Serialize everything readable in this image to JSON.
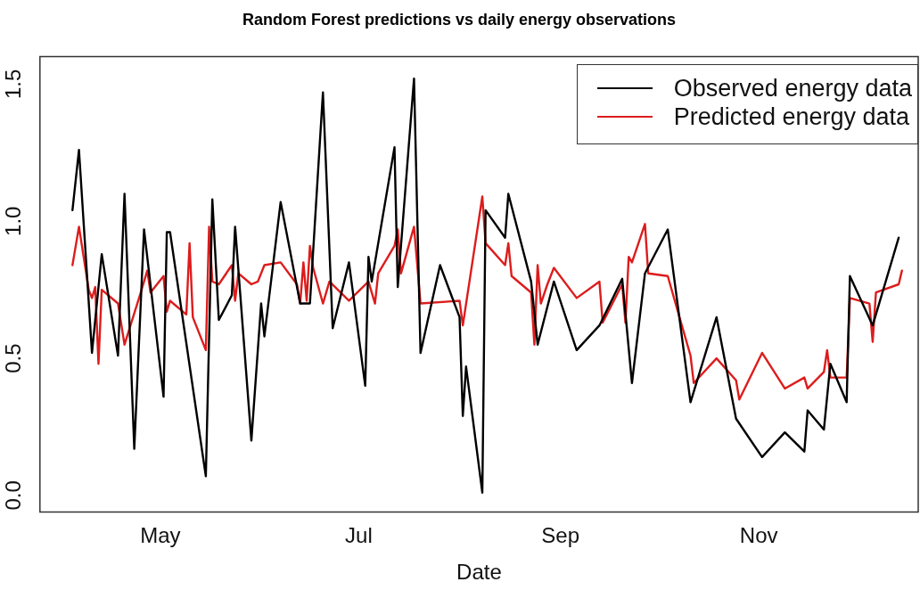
{
  "chart_data": {
    "type": "line",
    "title": "Random Forest predictions vs daily energy observations",
    "xlabel": "Date",
    "xlim": [
      "--03-25",
      "--12-20"
    ],
    "xticks": [
      {
        "value": "--05-01",
        "label": "May"
      },
      {
        "value": "--07-01",
        "label": "Jul"
      },
      {
        "value": "--09-01",
        "label": "Sep"
      },
      {
        "value": "--11-01",
        "label": "Nov"
      }
    ],
    "ylim": [
      -0.06,
      1.6
    ],
    "yticks": [
      {
        "value": 0,
        "label": "0.0"
      },
      {
        "value": 0.5,
        "label": "0.5"
      },
      {
        "value": 1,
        "label": "1.0"
      },
      {
        "value": 1.5,
        "label": "1.5"
      }
    ],
    "grid": false,
    "legend": "top right",
    "marker": "none",
    "line_style": "solid",
    "series": [
      {
        "name": "Observed energy data",
        "color": "#000000",
        "x": [
          "--04-04",
          "--04-06",
          "--04-10",
          "--04-13",
          "--04-18",
          "--04-20",
          "--04-23",
          "--04-26",
          "--05-02",
          "--05-03",
          "--05-04",
          "--05-15",
          "--05-17",
          "--05-19",
          "--05-23",
          "--05-24",
          "--05-29",
          "--06-01",
          "--06-02",
          "--06-07",
          "--06-13",
          "--06-16",
          "--06-20",
          "--06-23",
          "--06-28",
          "--07-03",
          "--07-04",
          "--07-05",
          "--07-12",
          "--07-13",
          "--07-18",
          "--07-20",
          "--07-26",
          "--08-01",
          "--08-02",
          "--08-03",
          "--08-08",
          "--08-09",
          "--08-15",
          "--08-16",
          "--08-23",
          "--08-25",
          "--08-30",
          "--09-06",
          "--09-13",
          "--09-20",
          "--09-23",
          "--09-27",
          "--10-04",
          "--10-11",
          "--10-19",
          "--10-25",
          "--11-02",
          "--11-09",
          "--11-15",
          "--11-16",
          "--11-21",
          "--11-23",
          "--11-28",
          "--11-29",
          "--12-06",
          "--12-14"
        ],
        "values": [
          1.04,
          1.26,
          0.52,
          0.88,
          0.51,
          1.1,
          0.17,
          0.97,
          0.36,
          0.96,
          0.96,
          0.07,
          1.08,
          0.64,
          0.73,
          0.98,
          0.2,
          0.7,
          0.58,
          1.07,
          0.7,
          0.7,
          1.47,
          0.61,
          0.85,
          0.4,
          0.87,
          0.78,
          1.27,
          0.76,
          1.52,
          0.52,
          0.84,
          0.65,
          0.29,
          0.47,
          0.01,
          1.04,
          0.94,
          1.1,
          0.78,
          0.55,
          0.78,
          0.53,
          0.62,
          0.79,
          0.41,
          0.81,
          0.97,
          0.34,
          0.65,
          0.28,
          0.14,
          0.23,
          0.16,
          0.31,
          0.24,
          0.48,
          0.34,
          0.8,
          0.62,
          0.94
        ]
      },
      {
        "name": "Predicted energy data",
        "color": "#dd1c1c",
        "x": [
          "--04-04",
          "--04-06",
          "--04-09",
          "--04-10",
          "--04-11",
          "--04-12",
          "--04-13",
          "--04-18",
          "--04-20",
          "--04-25",
          "--04-27",
          "--04-28",
          "--05-02",
          "--05-03",
          "--05-04",
          "--05-09",
          "--05-10",
          "--05-11",
          "--05-15",
          "--05-16",
          "--05-17",
          "--05-19",
          "--05-23",
          "--05-24",
          "--05-25",
          "--05-29",
          "--05-31",
          "--06-02",
          "--06-07",
          "--06-12",
          "--06-13",
          "--06-14",
          "--06-15",
          "--06-16",
          "--06-17",
          "--06-20",
          "--06-22",
          "--06-28",
          "--07-04",
          "--07-06",
          "--07-07",
          "--07-12",
          "--07-13",
          "--07-14",
          "--07-18",
          "--07-20",
          "--08-01",
          "--08-02",
          "--08-08",
          "--08-09",
          "--08-15",
          "--08-16",
          "--08-17",
          "--08-23",
          "--08-24",
          "--08-25",
          "--08-26",
          "--08-28",
          "--08-30",
          "--09-06",
          "--09-13",
          "--09-14",
          "--09-20",
          "--09-21",
          "--09-22",
          "--09-23",
          "--09-27",
          "--09-28",
          "--10-04",
          "--10-11",
          "--10-12",
          "--10-19",
          "--10-25",
          "--10-26",
          "--11-02",
          "--11-09",
          "--11-15",
          "--11-16",
          "--11-21",
          "--11-22",
          "--11-23",
          "--11-28",
          "--11-29",
          "--12-05",
          "--12-06",
          "--12-07",
          "--12-14",
          "--12-15"
        ],
        "values": [
          0.84,
          0.98,
          0.75,
          0.72,
          0.76,
          0.48,
          0.75,
          0.7,
          0.55,
          0.74,
          0.82,
          0.74,
          0.8,
          0.67,
          0.71,
          0.66,
          0.92,
          0.65,
          0.53,
          0.98,
          0.78,
          0.77,
          0.84,
          0.71,
          0.81,
          0.77,
          0.78,
          0.84,
          0.85,
          0.77,
          0.7,
          0.85,
          0.71,
          0.91,
          0.83,
          0.7,
          0.78,
          0.71,
          0.78,
          0.7,
          0.81,
          0.91,
          0.97,
          0.81,
          0.98,
          0.7,
          0.71,
          0.62,
          1.09,
          0.92,
          0.84,
          0.92,
          0.8,
          0.74,
          0.55,
          0.84,
          0.7,
          0.77,
          0.83,
          0.72,
          0.78,
          0.63,
          0.77,
          0.63,
          0.87,
          0.85,
          0.99,
          0.81,
          0.8,
          0.51,
          0.41,
          0.5,
          0.42,
          0.35,
          0.52,
          0.39,
          0.43,
          0.39,
          0.45,
          0.53,
          0.43,
          0.43,
          0.72,
          0.7,
          0.56,
          0.74,
          0.77,
          0.82
        ]
      }
    ]
  }
}
